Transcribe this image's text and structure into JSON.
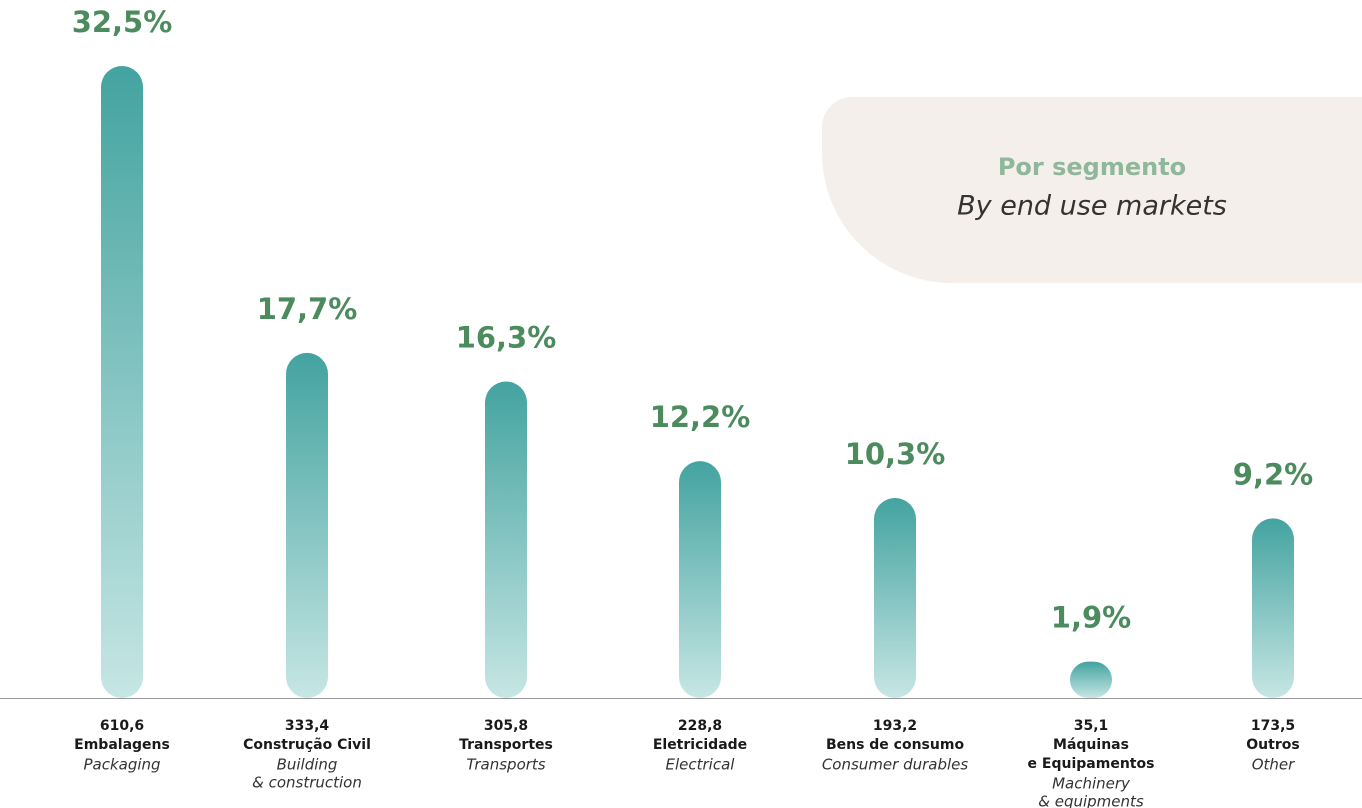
{
  "chart_data": {
    "type": "bar",
    "title": "Por segmento",
    "subtitle": "By end use markets",
    "categories": [
      [
        "Embalagens"
      ],
      [
        "Construção Civil"
      ],
      [
        "Transportes"
      ],
      [
        "Eletricidade"
      ],
      [
        "Bens de consumo"
      ],
      [
        "Máquinas",
        "e Equipamentos"
      ],
      [
        "Outros"
      ]
    ],
    "categories_en": [
      [
        "Packaging"
      ],
      [
        "Building",
        "& construction"
      ],
      [
        "Transports"
      ],
      [
        "Electrical"
      ],
      [
        "Consumer durables"
      ],
      [
        "Machinery",
        "& equipments"
      ],
      [
        "Other"
      ]
    ],
    "values": [
      610.6,
      333.4,
      305.8,
      228.8,
      193.2,
      35.1,
      173.5
    ],
    "value_labels": [
      "610,6",
      "333,4",
      "305,8",
      "228,8",
      "193,2",
      "35,1",
      "173,5"
    ],
    "percentages": [
      32.5,
      17.7,
      16.3,
      12.2,
      10.3,
      1.9,
      9.2
    ],
    "percentage_labels": [
      "32,5%",
      "17,7%",
      "16,3%",
      "12,2%",
      "10,3%",
      "1,9%",
      "9,2%"
    ],
    "color_top": "#43a3a0",
    "color_bottom": "#c6e6e4",
    "label_color": "#4b8b5e"
  }
}
